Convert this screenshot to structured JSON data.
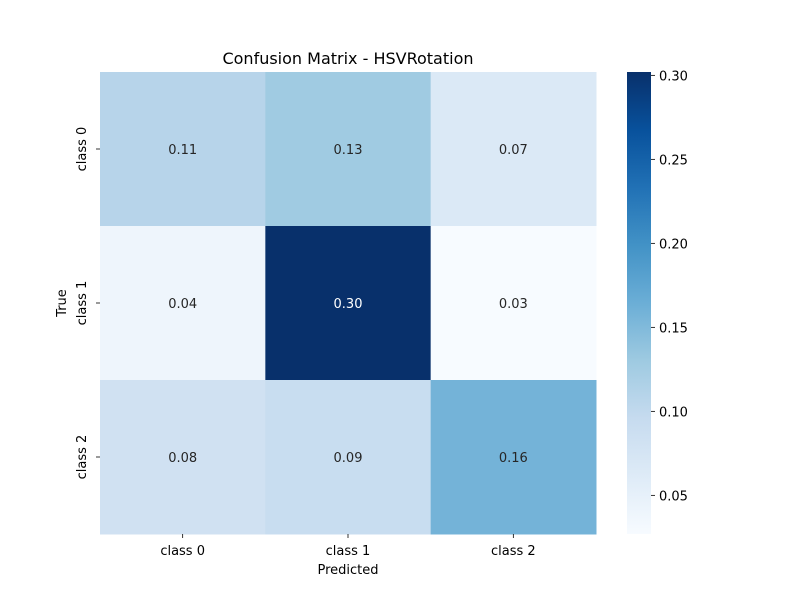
{
  "chart_data": {
    "type": "heatmap",
    "title": "Confusion Matrix - HSVRotation",
    "xlabel": "Predicted",
    "ylabel": "True",
    "x_categories": [
      "class 0",
      "class 1",
      "class 2"
    ],
    "y_categories": [
      "class 0",
      "class 1",
      "class 2"
    ],
    "values": [
      [
        0.11,
        0.13,
        0.07
      ],
      [
        0.04,
        0.3,
        0.03
      ],
      [
        0.08,
        0.09,
        0.16
      ]
    ],
    "annotations": [
      [
        "0.11",
        "0.13",
        "0.07"
      ],
      [
        "0.04",
        "0.30",
        "0.03"
      ],
      [
        "0.08",
        "0.09",
        "0.16"
      ]
    ],
    "colorbar": {
      "colormap": "Blues",
      "range": [
        0.027,
        0.302
      ],
      "ticks": [
        0.05,
        0.1,
        0.15,
        0.2,
        0.25,
        0.3
      ],
      "tick_labels": [
        "0.05",
        "0.10",
        "0.15",
        "0.20",
        "0.25",
        "0.30"
      ]
    }
  },
  "colors": {
    "cell_0_0": "#b7d4ea",
    "cell_0_1": "#a0cbe2",
    "cell_0_2": "#dbe9f6",
    "cell_1_0": "#eef5fc",
    "cell_1_1": "#08306b",
    "cell_1_2": "#f7fbff",
    "cell_2_0": "#d0e1f2",
    "cell_2_1": "#c8ddf0",
    "cell_2_2": "#74b3d8",
    "text_dark": "#262626",
    "text_light": "#ffffff"
  }
}
